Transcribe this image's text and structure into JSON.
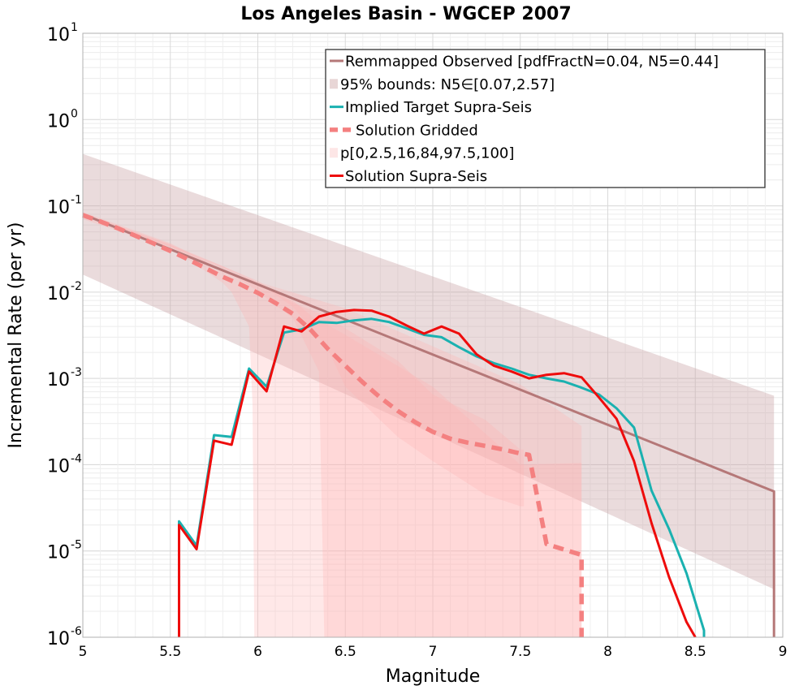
{
  "chart_data": {
    "type": "line",
    "title": "Los Angeles Basin - WGCEP 2007",
    "xlabel": "Magnitude",
    "ylabel": "Incremental Rate (per yr)",
    "xlim": [
      5,
      9
    ],
    "ylim": [
      1e-06,
      10
    ],
    "y_scale": "log",
    "grid": true,
    "legend_position": "top-right",
    "x_ticks": [
      "5",
      "5.5",
      "6",
      "6.5",
      "7",
      "7.5",
      "8",
      "8.5",
      "9"
    ],
    "y_ticks": [
      {
        "base": "10",
        "exp": "1"
      },
      {
        "base": "10",
        "exp": "0"
      },
      {
        "base": "10",
        "exp": "-1"
      },
      {
        "base": "10",
        "exp": "-2"
      },
      {
        "base": "10",
        "exp": "-3"
      },
      {
        "base": "10",
        "exp": "-4"
      },
      {
        "base": "10",
        "exp": "-5"
      },
      {
        "base": "10",
        "exp": "-6"
      }
    ],
    "legend": [
      {
        "label": "Remmapped Observed [pdfFractN=0.04, N5=0.44]",
        "style": "line",
        "color": "#b57878"
      },
      {
        "label": "95% bounds: N5∈[0.07,2.57]",
        "style": "band",
        "color": "#e8d6d6"
      },
      {
        "label": "Implied Target Supra-Seis",
        "style": "line",
        "color": "#1ab1b0"
      },
      {
        "label": "Solution Gridded",
        "style": "dashed",
        "color": "#f48080"
      },
      {
        "label": "p[0,2.5,16,84,97.5,100]",
        "style": "band",
        "color": "#fde6e6"
      },
      {
        "label": "Solution Supra-Seis",
        "style": "line",
        "color": "#ee0c0c"
      }
    ],
    "series": [
      {
        "name": "Remmapped Observed [pdfFractN=0.04, N5=0.44]",
        "color": "#b57878",
        "x": [
          5.0,
          8.95,
          8.95
        ],
        "y": [
          0.08,
          4.9e-05,
          1e-06
        ]
      },
      {
        "name": "95% bounds: N5∈[0.07,2.57]",
        "type": "band",
        "color": "#e8d6d6",
        "x": [
          5.0,
          8.95
        ],
        "lower": [
          0.016,
          3.6e-06
        ],
        "upper": [
          0.4,
          0.00063
        ]
      },
      {
        "name": "p[0,2.5,16,84,97.5,100]",
        "type": "band-set",
        "color": "#fde6e6",
        "bands": [
          {
            "x": [
              5.0,
              5.5,
              5.6,
              5.8,
              5.85,
              5.95,
              5.97,
              5.98,
              6.5,
              7.5,
              7.85,
              7.85
            ],
            "lower": [
              0.07,
              0.032,
              0.024,
              0.0128,
              0.01,
              0.004,
              0.0005,
              1e-06,
              1e-06,
              1e-06,
              1e-06,
              1e-06
            ],
            "upper": [
              0.085,
              0.037,
              0.029,
              0.018,
              0.016,
              0.0145,
              0.014,
              0.0135,
              0.0065,
              0.00085,
              0.00028,
              0.00028
            ]
          },
          {
            "x": [
              5.0,
              5.5,
              5.8,
              5.95,
              6.2,
              6.35,
              6.38,
              6.5,
              7.0,
              7.5,
              7.85,
              7.85
            ],
            "lower": [
              0.075,
              0.033,
              0.018,
              0.012,
              0.005,
              0.0012,
              1e-06,
              1e-06,
              1e-06,
              1e-06,
              1e-06,
              1e-06
            ],
            "upper": [
              0.082,
              0.036,
              0.02,
              0.0145,
              0.008,
              0.0045,
              0.0044,
              0.0032,
              0.0008,
              0.0001,
              0.000105,
              0.000105
            ]
          },
          {
            "x": [
              5.0,
              5.5,
              5.8,
              6.0,
              6.2,
              6.4,
              6.5,
              6.8,
              7.0,
              7.3,
              7.5,
              7.52
            ],
            "lower": [
              0.078,
              0.034,
              0.019,
              0.013,
              0.0068,
              0.0022,
              0.0008,
              0.00021,
              0.00011,
              4.5e-05,
              3.3e-05,
              3.3e-05
            ],
            "upper": [
              0.081,
              0.035,
              0.02,
              0.0135,
              0.0075,
              0.0052,
              0.0038,
              0.0016,
              0.00065,
              0.00033,
              0.00015,
              0.00015
            ]
          }
        ]
      },
      {
        "name": "Implied Target Supra-Seis",
        "color": "#1ab1b0",
        "x": [
          5.55,
          5.55,
          5.65,
          5.75,
          5.85,
          5.95,
          6.05,
          6.15,
          6.25,
          6.35,
          6.45,
          6.55,
          6.65,
          6.75,
          6.85,
          6.95,
          7.05,
          7.15,
          7.25,
          7.35,
          7.45,
          7.55,
          7.65,
          7.75,
          7.85,
          7.95,
          8.05,
          8.15,
          8.25,
          8.35,
          8.45,
          8.55,
          8.55
        ],
        "y": [
          1e-06,
          2.2e-05,
          1.15e-05,
          0.00022,
          0.00021,
          0.0013,
          0.0008,
          0.0034,
          0.0037,
          0.0045,
          0.0044,
          0.0047,
          0.0049,
          0.0045,
          0.0038,
          0.0032,
          0.003,
          0.0023,
          0.0018,
          0.0015,
          0.0013,
          0.0011,
          0.001,
          0.00092,
          0.00078,
          0.00065,
          0.00045,
          0.00027,
          5e-05,
          1.8e-05,
          5.5e-06,
          1.2e-06,
          1e-06
        ]
      },
      {
        "name": "Solution Gridded",
        "color": "#f48080",
        "x": [
          5.0,
          5.1,
          5.2,
          5.3,
          5.4,
          5.5,
          5.6,
          5.7,
          5.8,
          5.9,
          6.0,
          6.1,
          6.2,
          6.3,
          6.4,
          6.5,
          6.6,
          6.7,
          6.8,
          6.9,
          7.0,
          7.1,
          7.2,
          7.3,
          7.4,
          7.5,
          7.55,
          7.65,
          7.85,
          7.85
        ],
        "y": [
          0.078,
          0.066,
          0.055,
          0.045,
          0.037,
          0.03,
          0.024,
          0.019,
          0.015,
          0.0123,
          0.0098,
          0.0075,
          0.0056,
          0.0037,
          0.0022,
          0.0014,
          0.0009,
          0.0006,
          0.00042,
          0.00031,
          0.00024,
          0.0002,
          0.00018,
          0.000165,
          0.00015,
          0.000135,
          0.00013,
          1.2e-05,
          9e-06,
          1e-06
        ]
      },
      {
        "name": "Solution Supra-Seis",
        "color": "#ee0c0c",
        "x": [
          5.55,
          5.55,
          5.65,
          5.75,
          5.85,
          5.95,
          6.05,
          6.15,
          6.25,
          6.35,
          6.45,
          6.55,
          6.65,
          6.75,
          6.85,
          6.95,
          7.05,
          7.15,
          7.25,
          7.35,
          7.45,
          7.55,
          7.65,
          7.75,
          7.85,
          7.95,
          8.05,
          8.15,
          8.25,
          8.35,
          8.45,
          8.5
        ],
        "y": [
          1e-06,
          2e-05,
          1.05e-05,
          0.00019,
          0.00017,
          0.0012,
          0.00071,
          0.004,
          0.0035,
          0.0052,
          0.0059,
          0.0062,
          0.0061,
          0.0052,
          0.0041,
          0.0033,
          0.004,
          0.0033,
          0.0019,
          0.0014,
          0.0012,
          0.001,
          0.0011,
          0.00115,
          0.00103,
          0.0006,
          0.00034,
          0.00011,
          2.1e-05,
          5e-06,
          1.5e-06,
          1e-06
        ]
      }
    ]
  }
}
